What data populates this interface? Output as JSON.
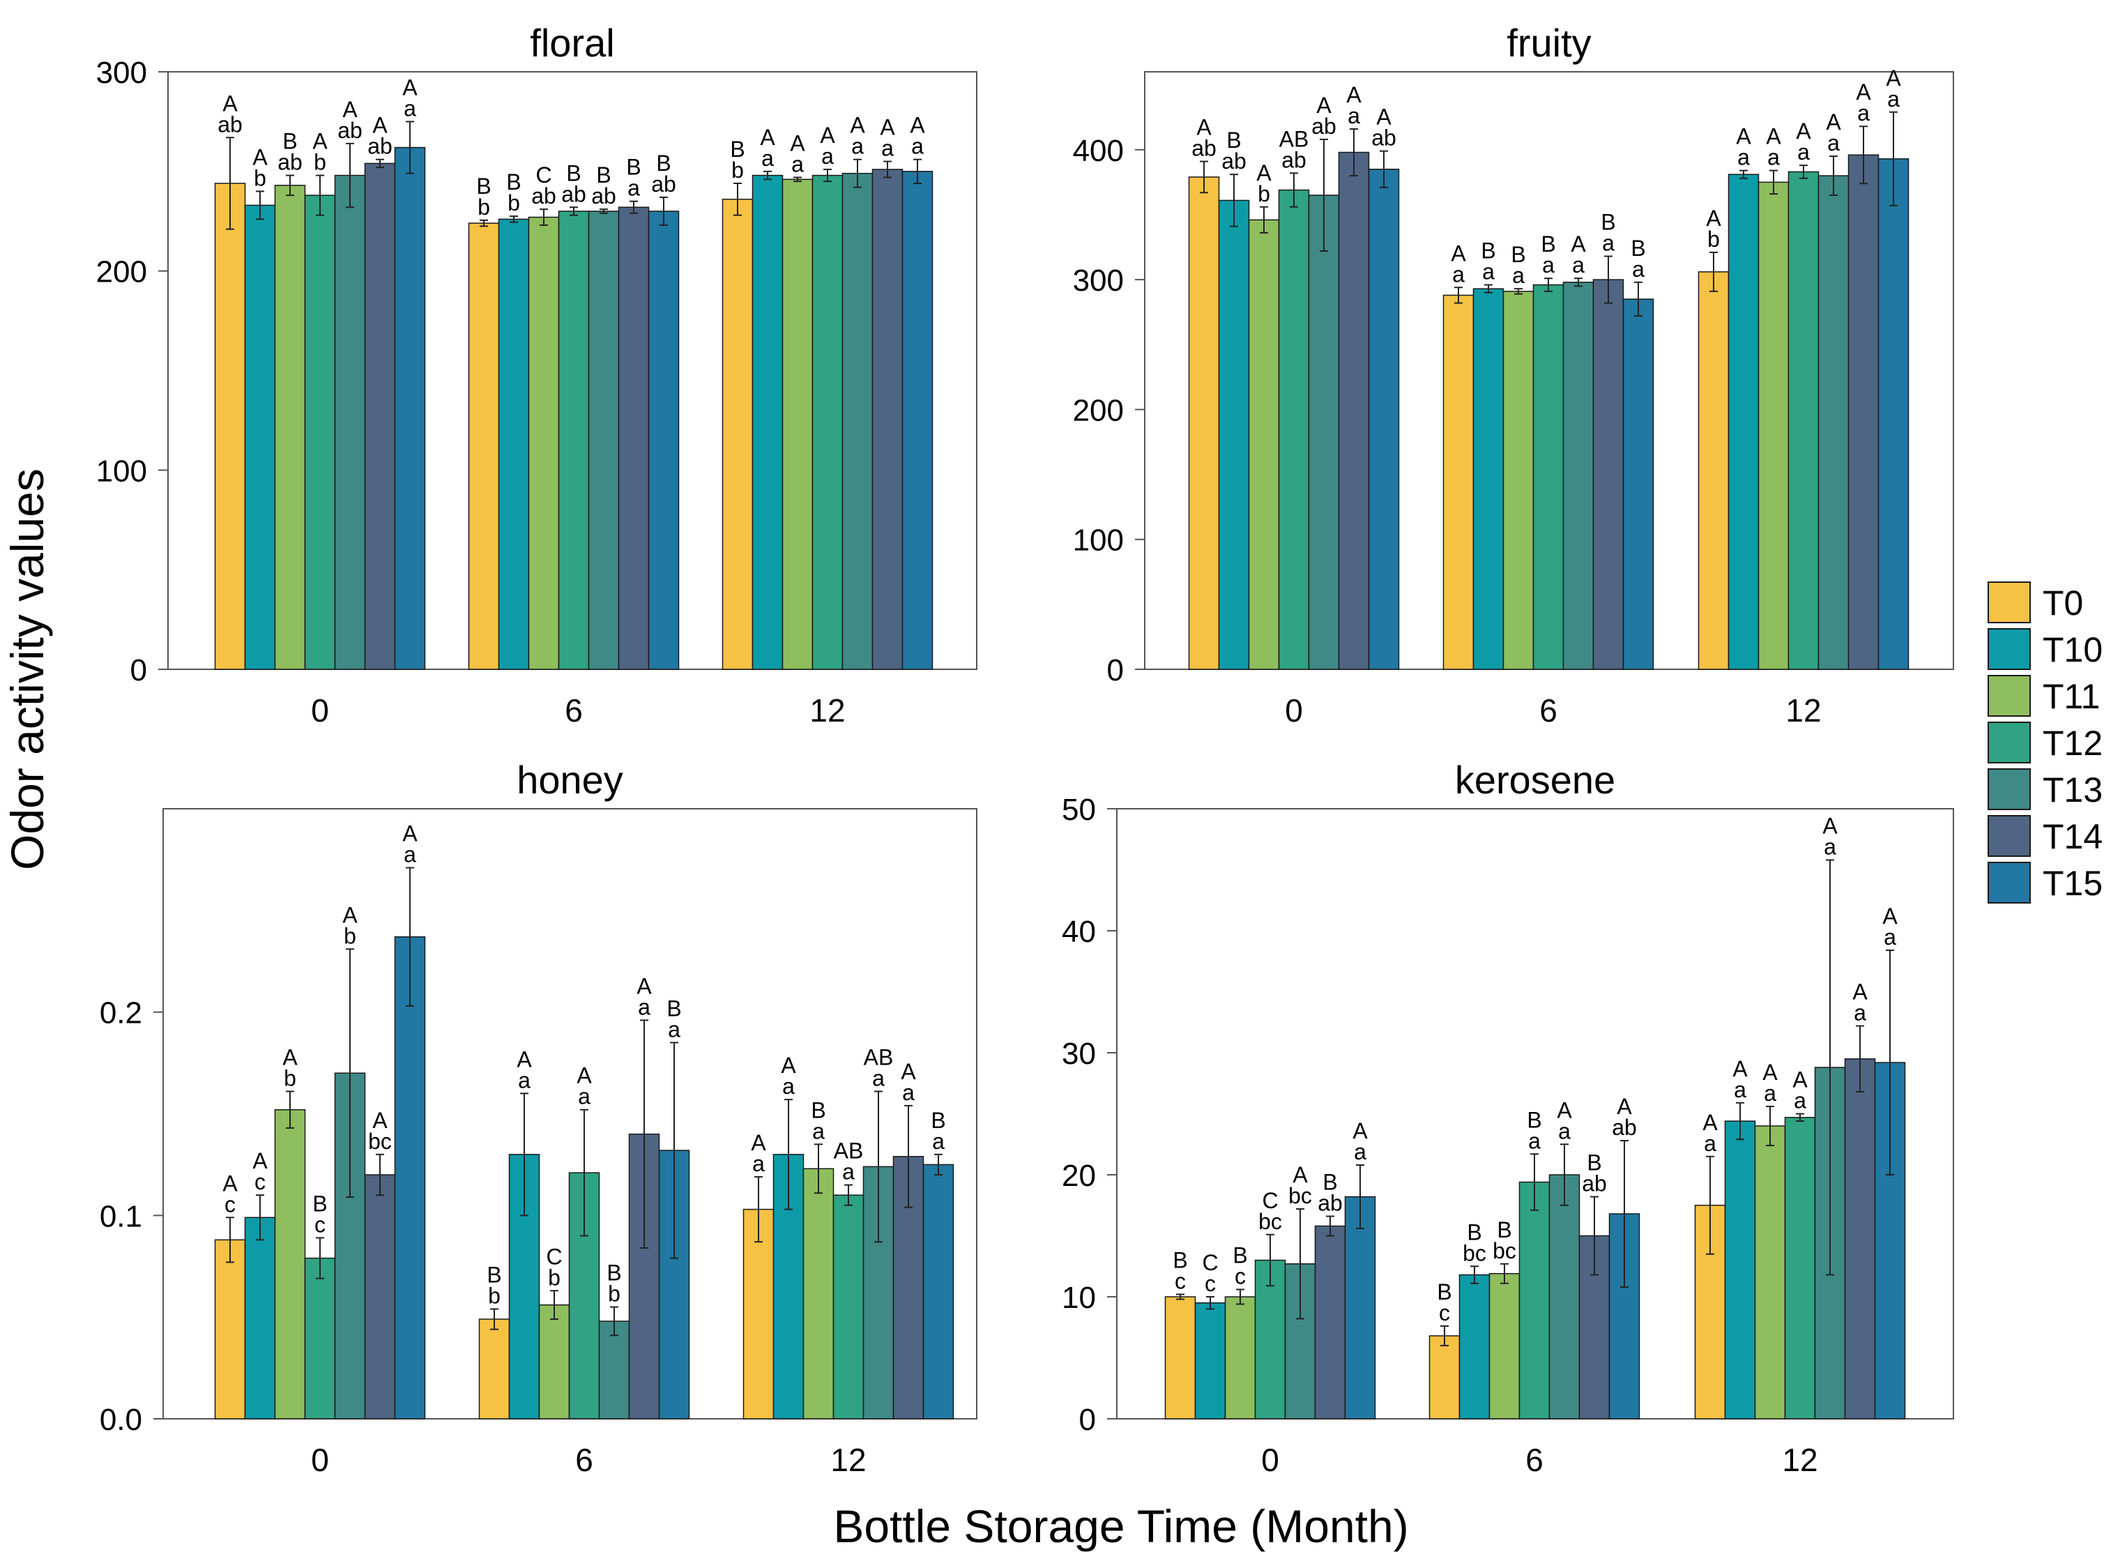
{
  "figure": {
    "ylabel": "Odor activity values",
    "xlabel": "Bottle Storage Time (Month)"
  },
  "legend": {
    "entries": [
      "T0",
      "T10",
      "T11",
      "T12",
      "T13",
      "T14",
      "T15"
    ],
    "colors": [
      "#F6C244",
      "#0E9BA8",
      "#8FBE5E",
      "#2FA383",
      "#3F8A86",
      "#4F6583",
      "#2178A2"
    ]
  },
  "chart_data": [
    {
      "type": "bar",
      "title": "floral",
      "categories": [
        "0",
        "6",
        "12"
      ],
      "ylim": [
        0,
        300
      ],
      "yticks": [
        "0",
        "100",
        "200",
        "300"
      ],
      "series": [
        {
          "name": "T0",
          "values": [
            244,
            224,
            236
          ],
          "errors": [
            23,
            1.5,
            8
          ],
          "labels": [
            [
              "A",
              "ab"
            ],
            [
              "B",
              "b"
            ],
            [
              "B",
              "b"
            ]
          ]
        },
        {
          "name": "T10",
          "values": [
            233,
            226,
            248
          ],
          "errors": [
            7,
            1.5,
            2
          ],
          "labels": [
            [
              "A",
              "b"
            ],
            [
              "B",
              "b"
            ],
            [
              "A",
              "a"
            ]
          ]
        },
        {
          "name": "T11",
          "values": [
            243,
            227,
            246
          ],
          "errors": [
            5,
            4,
            1
          ],
          "labels": [
            [
              "B",
              "ab"
            ],
            [
              "C",
              "ab"
            ],
            [
              "A",
              "a"
            ]
          ]
        },
        {
          "name": "T12",
          "values": [
            238,
            230,
            248
          ],
          "errors": [
            10,
            2,
            3
          ],
          "labels": [
            [
              "A",
              "b"
            ],
            [
              "B",
              "ab"
            ],
            [
              "A",
              "a"
            ]
          ]
        },
        {
          "name": "T13",
          "values": [
            248,
            230,
            249
          ],
          "errors": [
            16,
            1,
            7
          ],
          "labels": [
            [
              "A",
              "ab"
            ],
            [
              "B",
              "ab"
            ],
            [
              "A",
              "a"
            ]
          ]
        },
        {
          "name": "T14",
          "values": [
            254,
            232,
            251
          ],
          "errors": [
            2,
            3,
            4
          ],
          "labels": [
            [
              "A",
              "ab"
            ],
            [
              "B",
              "a"
            ],
            [
              "A",
              "a"
            ]
          ]
        },
        {
          "name": "T15",
          "values": [
            262,
            230,
            250
          ],
          "errors": [
            13,
            7,
            6
          ],
          "labels": [
            [
              "A",
              "a"
            ],
            [
              "B",
              "ab"
            ],
            [
              "A",
              "a"
            ]
          ]
        }
      ]
    },
    {
      "type": "bar",
      "title": "fruity",
      "categories": [
        "0",
        "6",
        "12"
      ],
      "ylim": [
        0,
        460
      ],
      "yticks": [
        "0",
        "100",
        "200",
        "300",
        "400"
      ],
      "series": [
        {
          "name": "T0",
          "values": [
            379,
            288,
            306
          ],
          "errors": [
            12,
            6,
            15
          ],
          "labels": [
            [
              "A",
              "ab"
            ],
            [
              "A",
              "a"
            ],
            [
              "A",
              "b"
            ]
          ]
        },
        {
          "name": "T10",
          "values": [
            361,
            293,
            381
          ],
          "errors": [
            20,
            3,
            3
          ],
          "labels": [
            [
              "B",
              "ab"
            ],
            [
              "B",
              "a"
            ],
            [
              "A",
              "a"
            ]
          ]
        },
        {
          "name": "T11",
          "values": [
            346,
            291,
            375
          ],
          "errors": [
            10,
            2,
            9
          ],
          "labels": [
            [
              "A",
              "b"
            ],
            [
              "B",
              "a"
            ],
            [
              "A",
              "a"
            ]
          ]
        },
        {
          "name": "T12",
          "values": [
            369,
            296,
            383
          ],
          "errors": [
            13,
            5,
            5
          ],
          "labels": [
            [
              "AB",
              "ab"
            ],
            [
              "B",
              "a"
            ],
            [
              "A",
              "a"
            ]
          ]
        },
        {
          "name": "T13",
          "values": [
            365,
            298,
            380
          ],
          "errors": [
            43,
            3,
            15
          ],
          "labels": [
            [
              "A",
              "ab"
            ],
            [
              "A",
              "a"
            ],
            [
              "A",
              "a"
            ]
          ]
        },
        {
          "name": "T14",
          "values": [
            398,
            300,
            396
          ],
          "errors": [
            18,
            18,
            22
          ],
          "labels": [
            [
              "A",
              "a"
            ],
            [
              "B",
              "a"
            ],
            [
              "A",
              "a"
            ]
          ]
        },
        {
          "name": "T15",
          "values": [
            385,
            285,
            393
          ],
          "errors": [
            14,
            13,
            36
          ],
          "labels": [
            [
              "A",
              "ab"
            ],
            [
              "B",
              "a"
            ],
            [
              "A",
              "a"
            ]
          ]
        }
      ]
    },
    {
      "type": "bar",
      "title": "honey",
      "categories": [
        "0",
        "6",
        "12"
      ],
      "ylim": [
        0,
        0.3
      ],
      "yticks": [
        "0.0",
        "0.1",
        "0.2"
      ],
      "series": [
        {
          "name": "T0",
          "values": [
            0.088,
            0.049,
            0.103
          ],
          "errors": [
            0.011,
            0.005,
            0.016
          ],
          "labels": [
            [
              "A",
              "c"
            ],
            [
              "B",
              "b"
            ],
            [
              "A",
              "a"
            ]
          ]
        },
        {
          "name": "T10",
          "values": [
            0.099,
            0.13,
            0.13
          ],
          "errors": [
            0.011,
            0.03,
            0.027
          ],
          "labels": [
            [
              "A",
              "c"
            ],
            [
              "A",
              "a"
            ],
            [
              "A",
              "a"
            ]
          ]
        },
        {
          "name": "T11",
          "values": [
            0.152,
            0.056,
            0.123
          ],
          "errors": [
            0.009,
            0.007,
            0.012
          ],
          "labels": [
            [
              "A",
              "b"
            ],
            [
              "C",
              "b"
            ],
            [
              "B",
              "a"
            ]
          ]
        },
        {
          "name": "T12",
          "values": [
            0.079,
            0.121,
            0.11
          ],
          "errors": [
            0.01,
            0.031,
            0.005
          ],
          "labels": [
            [
              "B",
              "c"
            ],
            [
              "A",
              "a"
            ],
            [
              "AB",
              "a"
            ]
          ]
        },
        {
          "name": "T13",
          "values": [
            0.17,
            0.048,
            0.124
          ],
          "errors": [
            0.061,
            0.007,
            0.037
          ],
          "labels": [
            [
              "A",
              "b"
            ],
            [
              "B",
              "b"
            ],
            [
              "AB",
              "a"
            ]
          ]
        },
        {
          "name": "T14",
          "values": [
            0.12,
            0.14,
            0.129
          ],
          "errors": [
            0.01,
            0.056,
            0.025
          ],
          "labels": [
            [
              "A",
              "bc"
            ],
            [
              "A",
              "a"
            ],
            [
              "A",
              "a"
            ]
          ]
        },
        {
          "name": "T15",
          "values": [
            0.237,
            0.132,
            0.125
          ],
          "errors": [
            0.034,
            0.053,
            0.005
          ],
          "labels": [
            [
              "A",
              "a"
            ],
            [
              "B",
              "a"
            ],
            [
              "B",
              "a"
            ]
          ]
        }
      ]
    },
    {
      "type": "bar",
      "title": "kerosene",
      "categories": [
        "0",
        "6",
        "12"
      ],
      "ylim": [
        0,
        50
      ],
      "yticks": [
        "0",
        "10",
        "20",
        "30",
        "40",
        "50"
      ],
      "series": [
        {
          "name": "T0",
          "values": [
            10.0,
            6.8,
            17.5
          ],
          "errors": [
            0.2,
            0.8,
            4.0
          ],
          "labels": [
            [
              "B",
              "c"
            ],
            [
              "B",
              "c"
            ],
            [
              "A",
              "a"
            ]
          ]
        },
        {
          "name": "T10",
          "values": [
            9.5,
            11.8,
            24.4
          ],
          "errors": [
            0.5,
            0.7,
            1.5
          ],
          "labels": [
            [
              "C",
              "c"
            ],
            [
              "B",
              "bc"
            ],
            [
              "A",
              "a"
            ]
          ]
        },
        {
          "name": "T11",
          "values": [
            10.0,
            11.9,
            24.0
          ],
          "errors": [
            0.6,
            0.8,
            1.6
          ],
          "labels": [
            [
              "B",
              "c"
            ],
            [
              "B",
              "bc"
            ],
            [
              "A",
              "a"
            ]
          ]
        },
        {
          "name": "T12",
          "values": [
            13.0,
            19.4,
            24.7
          ],
          "errors": [
            2.1,
            2.3,
            0.3
          ],
          "labels": [
            [
              "C",
              "bc"
            ],
            [
              "B",
              "a"
            ],
            [
              "A",
              "a"
            ]
          ]
        },
        {
          "name": "T13",
          "values": [
            12.7,
            20.0,
            28.8
          ],
          "errors": [
            4.5,
            2.5,
            17.0
          ],
          "labels": [
            [
              "A",
              "bc"
            ],
            [
              "A",
              "a"
            ],
            [
              "A",
              "a"
            ]
          ]
        },
        {
          "name": "T14",
          "values": [
            15.8,
            15.0,
            29.5
          ],
          "errors": [
            0.8,
            3.2,
            2.7
          ],
          "labels": [
            [
              "B",
              "ab"
            ],
            [
              "B",
              "ab"
            ],
            [
              "A",
              "a"
            ]
          ]
        },
        {
          "name": "T15",
          "values": [
            18.2,
            16.8,
            29.2
          ],
          "errors": [
            2.6,
            6.0,
            9.2
          ],
          "labels": [
            [
              "A",
              "a"
            ],
            [
              "A",
              "ab"
            ],
            [
              "A",
              "a"
            ]
          ]
        }
      ]
    }
  ]
}
